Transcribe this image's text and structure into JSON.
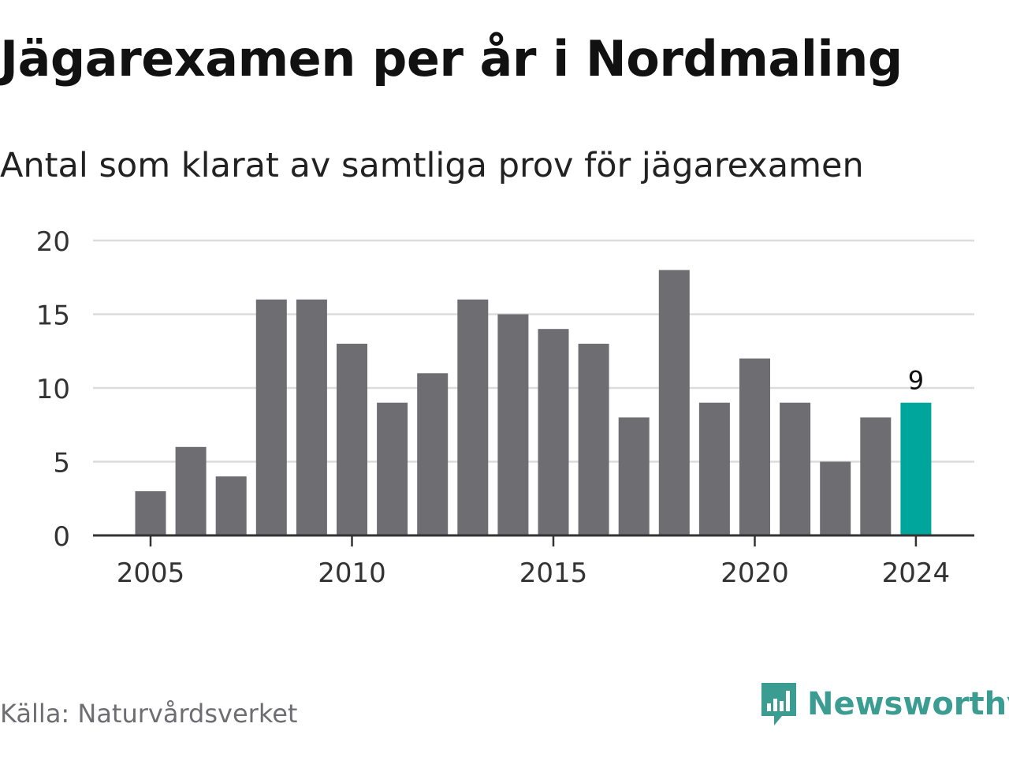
{
  "title": "Jägarexamen per år i Nordmaling",
  "subtitle": "Antal som klarat av samtliga prov för jägarexamen",
  "source": "Källa: Naturvårdsverket",
  "brand": {
    "name": "Newsworthy",
    "icon": "newsworthy-logo-icon",
    "color": "#3b9c92"
  },
  "colors": {
    "bar": "#6e6d72",
    "highlight": "#00a69c",
    "grid": "#dcdcdc",
    "axis": "#333333"
  },
  "chart_data": {
    "type": "bar",
    "title": "Jägarexamen per år i Nordmaling",
    "subtitle": "Antal som klarat av samtliga prov för jägarexamen",
    "x": [
      2005,
      2006,
      2007,
      2008,
      2009,
      2010,
      2011,
      2012,
      2013,
      2014,
      2015,
      2016,
      2017,
      2018,
      2019,
      2020,
      2021,
      2022,
      2023,
      2024
    ],
    "values": [
      3,
      6,
      4,
      16,
      16,
      13,
      9,
      11,
      16,
      15,
      14,
      13,
      8,
      18,
      9,
      12,
      9,
      5,
      8,
      9
    ],
    "xticks": [
      "2005",
      "2010",
      "2015",
      "2020",
      "2024"
    ],
    "yticks": [
      0,
      5,
      10,
      15,
      20
    ],
    "ylim": [
      0,
      20
    ],
    "highlight": {
      "x": 2024,
      "label": "9"
    },
    "grid": true,
    "legend": false
  }
}
